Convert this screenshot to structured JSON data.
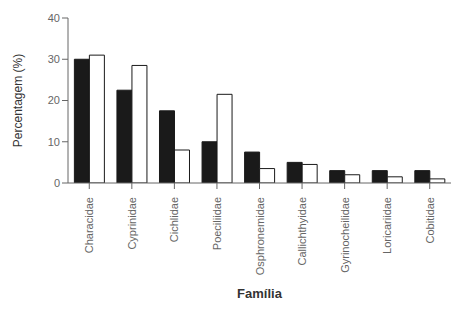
{
  "chart_data": {
    "type": "bar",
    "xlabel": "Família",
    "ylabel": "Percentagem (%)",
    "categories": [
      "Characidae",
      "Cyprinidae",
      "Cichlidae",
      "Poeciliidae",
      "Osphronemidae",
      "Callichthyidae",
      "Gyrinocheilidae",
      "Loricariidae",
      "Cobitidae"
    ],
    "series": [
      {
        "color": "#1a1a1a",
        "values": [
          30.0,
          22.5,
          17.5,
          10.0,
          7.5,
          5.0,
          3.0,
          3.0,
          3.0
        ]
      },
      {
        "color": "#ffffff",
        "values": [
          31.0,
          28.5,
          8.0,
          21.5,
          3.5,
          4.5,
          2.0,
          1.5,
          1.0
        ]
      }
    ],
    "ylim": [
      0,
      40
    ],
    "yticks": [
      0,
      10,
      20,
      30,
      40
    ],
    "grid": false
  }
}
